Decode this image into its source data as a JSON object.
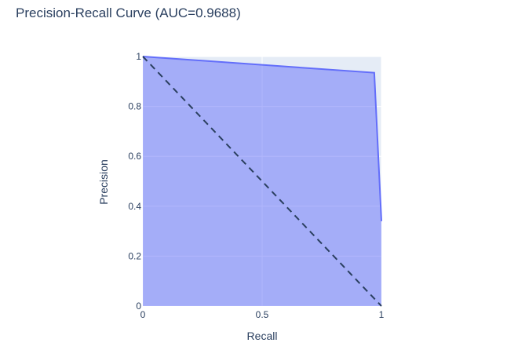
{
  "chart_data": {
    "type": "area",
    "title": "Precision-Recall Curve (AUC=0.9688)",
    "xlabel": "Recall",
    "ylabel": "Precision",
    "xlim": [
      0,
      1
    ],
    "ylim": [
      0,
      1
    ],
    "x_ticks": [
      {
        "value": 0,
        "label": "0"
      },
      {
        "value": 0.5,
        "label": "0.5"
      },
      {
        "value": 1,
        "label": "1"
      }
    ],
    "y_ticks": [
      {
        "value": 0,
        "label": "0"
      },
      {
        "value": 0.2,
        "label": "0.2"
      },
      {
        "value": 0.4,
        "label": "0.4"
      },
      {
        "value": 0.6,
        "label": "0.6"
      },
      {
        "value": 0.8,
        "label": "0.8"
      },
      {
        "value": 1,
        "label": "1"
      }
    ],
    "series": [
      {
        "x": [
          0,
          0.97,
          1.0
        ],
        "y": [
          1.0,
          0.935,
          0.34
        ],
        "fill": "tozeroy",
        "line_color": "#636efa",
        "fill_color": "rgba(99,110,250,0.5)"
      }
    ],
    "reference_line": {
      "x": [
        0,
        1
      ],
      "y": [
        1,
        0
      ],
      "dash": "dash",
      "color": "#2a3f5f"
    },
    "grid": true,
    "plot_bgcolor": "#e5ecf6"
  }
}
